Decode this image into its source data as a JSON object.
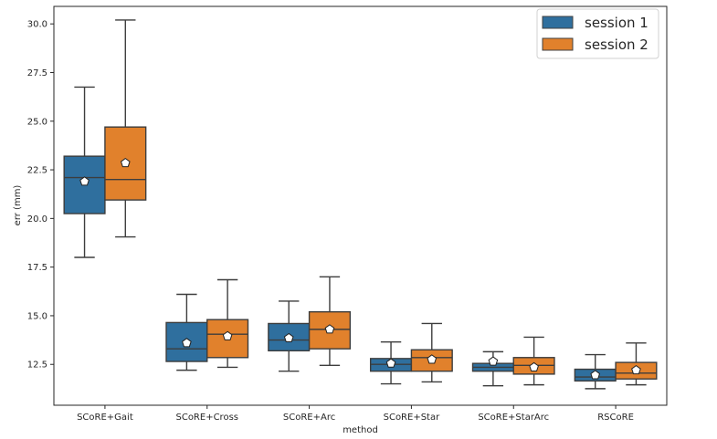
{
  "chart_data": {
    "type": "box",
    "xlabel": "method",
    "ylabel": "err (mm)",
    "ylim": [
      10.4,
      30.9
    ],
    "yticks": [
      "12.5",
      "15.0",
      "17.5",
      "20.0",
      "22.5",
      "25.0",
      "27.5",
      "30.0"
    ],
    "categories": [
      "SCoRE+Gait",
      "SCoRE+Cross",
      "SCoRE+Arc",
      "SCoRE+Star",
      "SCoRE+StarArc",
      "RSCoRE"
    ],
    "legend_position": "top-right",
    "grid": false,
    "mean_marker": "pentagon",
    "series": [
      {
        "name": "session 1",
        "color": "#2f6f9e",
        "boxes": [
          {
            "whisker_low": 18.0,
            "q1": 20.25,
            "median": 22.1,
            "q3": 23.2,
            "whisker_high": 26.75,
            "mean": 21.9
          },
          {
            "whisker_low": 12.2,
            "q1": 12.65,
            "median": 13.3,
            "q3": 14.65,
            "whisker_high": 16.1,
            "mean": 13.6
          },
          {
            "whisker_low": 12.15,
            "q1": 13.2,
            "median": 13.75,
            "q3": 14.6,
            "whisker_high": 15.75,
            "mean": 13.85
          },
          {
            "whisker_low": 11.5,
            "q1": 12.15,
            "median": 12.5,
            "q3": 12.8,
            "whisker_high": 13.65,
            "mean": 12.55
          },
          {
            "whisker_low": 11.4,
            "q1": 12.15,
            "median": 12.35,
            "q3": 12.55,
            "whisker_high": 13.15,
            "mean": 12.65
          },
          {
            "whisker_low": 11.25,
            "q1": 11.65,
            "median": 11.85,
            "q3": 12.25,
            "whisker_high": 13.0,
            "mean": 11.95
          }
        ]
      },
      {
        "name": "session 2",
        "color": "#e1812c",
        "boxes": [
          {
            "whisker_low": 19.05,
            "q1": 20.95,
            "median": 22.0,
            "q3": 24.7,
            "whisker_high": 30.2,
            "mean": 22.85
          },
          {
            "whisker_low": 12.35,
            "q1": 12.85,
            "median": 14.05,
            "q3": 14.8,
            "whisker_high": 16.85,
            "mean": 13.95
          },
          {
            "whisker_low": 12.45,
            "q1": 13.3,
            "median": 14.3,
            "q3": 15.2,
            "whisker_high": 17.0,
            "mean": 14.3
          },
          {
            "whisker_low": 11.6,
            "q1": 12.15,
            "median": 12.85,
            "q3": 13.25,
            "whisker_high": 14.6,
            "mean": 12.75
          },
          {
            "whisker_low": 11.45,
            "q1": 12.0,
            "median": 12.45,
            "q3": 12.85,
            "whisker_high": 13.9,
            "mean": 12.35
          },
          {
            "whisker_low": 11.45,
            "q1": 11.75,
            "median": 12.05,
            "q3": 12.6,
            "whisker_high": 13.6,
            "mean": 12.2
          }
        ]
      }
    ]
  }
}
